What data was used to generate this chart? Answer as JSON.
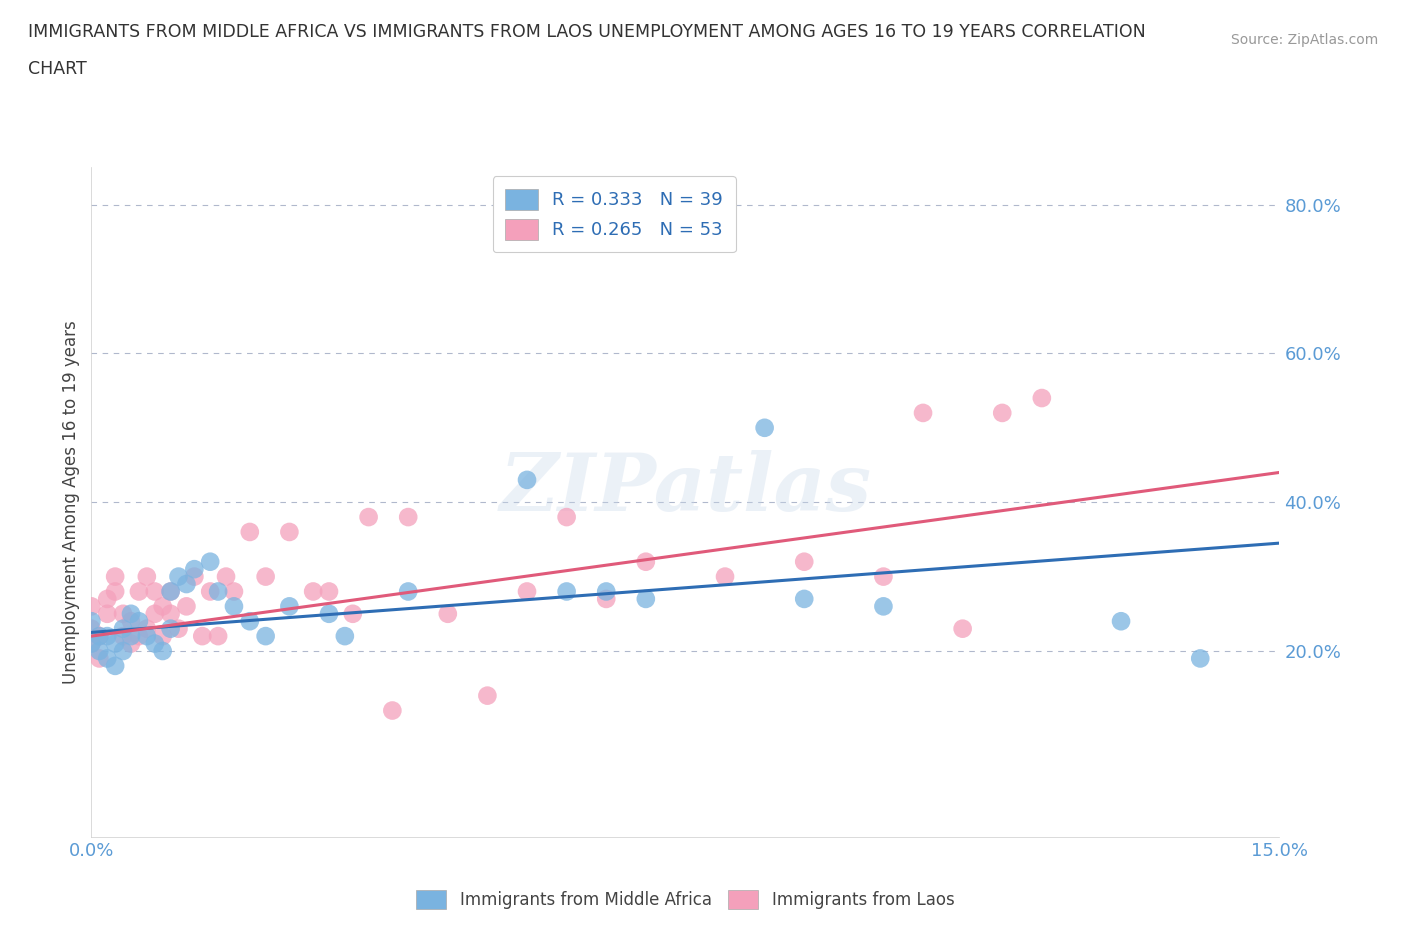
{
  "title_line1": "IMMIGRANTS FROM MIDDLE AFRICA VS IMMIGRANTS FROM LAOS UNEMPLOYMENT AMONG AGES 16 TO 19 YEARS CORRELATION",
  "title_line2": "CHART",
  "source": "Source: ZipAtlas.com",
  "ylabel": "Unemployment Among Ages 16 to 19 years",
  "xlim": [
    0.0,
    0.15
  ],
  "ylim": [
    -0.05,
    0.85
  ],
  "xticks": [
    0.0,
    0.05,
    0.1,
    0.15
  ],
  "xtick_labels": [
    "0.0%",
    "",
    "",
    "15.0%"
  ],
  "ytick_vals": [
    0.0,
    0.2,
    0.4,
    0.6,
    0.8
  ],
  "ytick_labels": [
    "",
    "20.0%",
    "40.0%",
    "60.0%",
    "80.0%"
  ],
  "legend_r1": "R = 0.333   N = 39",
  "legend_r2": "R = 0.265   N = 53",
  "legend_label1": "Immigrants from Middle Africa",
  "legend_label2": "Immigrants from Laos",
  "color_blue": "#7ab3e0",
  "color_pink": "#f4a0bb",
  "color_blue_line": "#2e6db4",
  "color_pink_line": "#e05a7a",
  "watermark": "ZIPatlas",
  "blue_scatter_x": [
    0.0,
    0.0,
    0.001,
    0.001,
    0.002,
    0.002,
    0.003,
    0.003,
    0.004,
    0.004,
    0.005,
    0.005,
    0.006,
    0.007,
    0.008,
    0.009,
    0.01,
    0.01,
    0.011,
    0.012,
    0.013,
    0.015,
    0.016,
    0.018,
    0.02,
    0.022,
    0.025,
    0.03,
    0.032,
    0.04,
    0.055,
    0.06,
    0.065,
    0.07,
    0.085,
    0.09,
    0.1,
    0.13,
    0.14
  ],
  "blue_scatter_y": [
    0.21,
    0.24,
    0.2,
    0.22,
    0.19,
    0.22,
    0.18,
    0.21,
    0.2,
    0.23,
    0.22,
    0.25,
    0.24,
    0.22,
    0.21,
    0.2,
    0.23,
    0.28,
    0.3,
    0.29,
    0.31,
    0.32,
    0.28,
    0.26,
    0.24,
    0.22,
    0.26,
    0.25,
    0.22,
    0.28,
    0.43,
    0.28,
    0.28,
    0.27,
    0.5,
    0.27,
    0.26,
    0.24,
    0.19
  ],
  "pink_scatter_x": [
    0.0,
    0.0,
    0.0,
    0.001,
    0.001,
    0.002,
    0.002,
    0.003,
    0.003,
    0.004,
    0.004,
    0.005,
    0.005,
    0.006,
    0.006,
    0.007,
    0.007,
    0.008,
    0.008,
    0.009,
    0.009,
    0.01,
    0.01,
    0.011,
    0.012,
    0.013,
    0.014,
    0.015,
    0.016,
    0.017,
    0.018,
    0.02,
    0.022,
    0.025,
    0.028,
    0.03,
    0.033,
    0.035,
    0.038,
    0.04,
    0.045,
    0.05,
    0.055,
    0.06,
    0.065,
    0.07,
    0.08,
    0.09,
    0.1,
    0.105,
    0.11,
    0.115,
    0.12
  ],
  "pink_scatter_y": [
    0.21,
    0.23,
    0.26,
    0.19,
    0.22,
    0.25,
    0.27,
    0.28,
    0.3,
    0.22,
    0.25,
    0.21,
    0.24,
    0.22,
    0.28,
    0.23,
    0.3,
    0.25,
    0.28,
    0.22,
    0.26,
    0.25,
    0.28,
    0.23,
    0.26,
    0.3,
    0.22,
    0.28,
    0.22,
    0.3,
    0.28,
    0.36,
    0.3,
    0.36,
    0.28,
    0.28,
    0.25,
    0.38,
    0.12,
    0.38,
    0.25,
    0.14,
    0.28,
    0.38,
    0.27,
    0.32,
    0.3,
    0.32,
    0.3,
    0.52,
    0.23,
    0.52,
    0.54
  ],
  "blue_trend": [
    0.225,
    0.345
  ],
  "pink_trend": [
    0.22,
    0.44
  ]
}
